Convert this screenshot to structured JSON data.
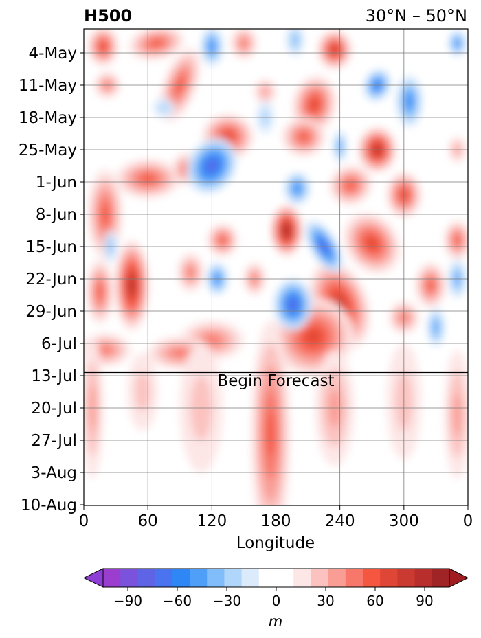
{
  "chart_data": {
    "type": "heatmap",
    "title_left": "H500",
    "title_right": "30°N – 50°N",
    "xlabel": "Longitude",
    "ylabel": "",
    "x_ticks": [
      "0",
      "60",
      "120",
      "180",
      "240",
      "300",
      "0"
    ],
    "xlim": [
      0,
      360
    ],
    "y_ticks": [
      "4-May",
      "11-May",
      "18-May",
      "25-May",
      "1-Jun",
      "8-Jun",
      "15-Jun",
      "22-Jun",
      "29-Jun",
      "6-Jul",
      "13-Jul",
      "20-Jul",
      "27-Jul",
      "3-Aug",
      "10-Aug"
    ],
    "y_direction": "dates increase downward",
    "grid": true,
    "forecast_line_date": "12-Jul",
    "annotation": "Begin Forecast",
    "colorbar": {
      "label": "m",
      "ticks": [
        "−90",
        "−60",
        "−30",
        "0",
        "30",
        "60",
        "90"
      ],
      "range": [
        -105,
        105
      ],
      "step": 10,
      "extend": "both",
      "colors": [
        "#9b3ed0",
        "#7a52dc",
        "#5f63e6",
        "#4a73ef",
        "#2f87f6",
        "#4f9ef8",
        "#80bdfa",
        "#b1d6fb",
        "#dcebfc",
        "#ffffff",
        "#ffffff",
        "#fde6e6",
        "#fbc2bf",
        "#f99d95",
        "#f7786a",
        "#f4563f",
        "#e04636",
        "#cb3a31",
        "#b72e2c",
        "#a02426"
      ],
      "extend_low_color": "#8e3ed4",
      "extend_high_color": "#a01c20"
    }
  }
}
